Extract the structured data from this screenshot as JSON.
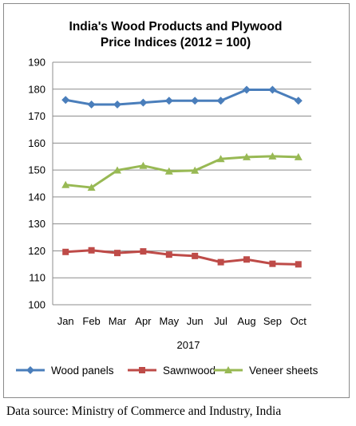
{
  "chart_data": {
    "type": "line",
    "title": "India's Wood Products and Plywood\nPrice Indices (2012 = 100)",
    "categories": [
      "Jan",
      "Feb",
      "Mar",
      "Apr",
      "May",
      "Jun",
      "Jul",
      "Aug",
      "Sep",
      "Oct"
    ],
    "xlabel": "2017",
    "ylabel": "",
    "ylim": [
      100,
      190
    ],
    "yticks": [
      100,
      110,
      120,
      130,
      140,
      150,
      160,
      170,
      180,
      190
    ],
    "grid": true,
    "legend_position": "bottom",
    "series": [
      {
        "name": "Wood panels",
        "color": "#4a7ebb",
        "marker": "diamond",
        "values": [
          176,
          174.3,
          174.3,
          175,
          175.7,
          175.7,
          175.7,
          179.8,
          179.8,
          175.7
        ]
      },
      {
        "name": "Sawnwood",
        "color": "#be4b48",
        "marker": "square",
        "values": [
          119.6,
          120.2,
          119.2,
          119.8,
          118.6,
          118.1,
          115.8,
          116.8,
          115.2,
          115
        ]
      },
      {
        "name": "Veneer sheets",
        "color": "#98b954",
        "marker": "triangle",
        "values": [
          144.5,
          143.5,
          149.9,
          151.6,
          149.5,
          149.8,
          154.1,
          154.8,
          155.1,
          154.8
        ]
      }
    ]
  },
  "source_text": "Data source: Ministry of Commerce and Industry, India"
}
